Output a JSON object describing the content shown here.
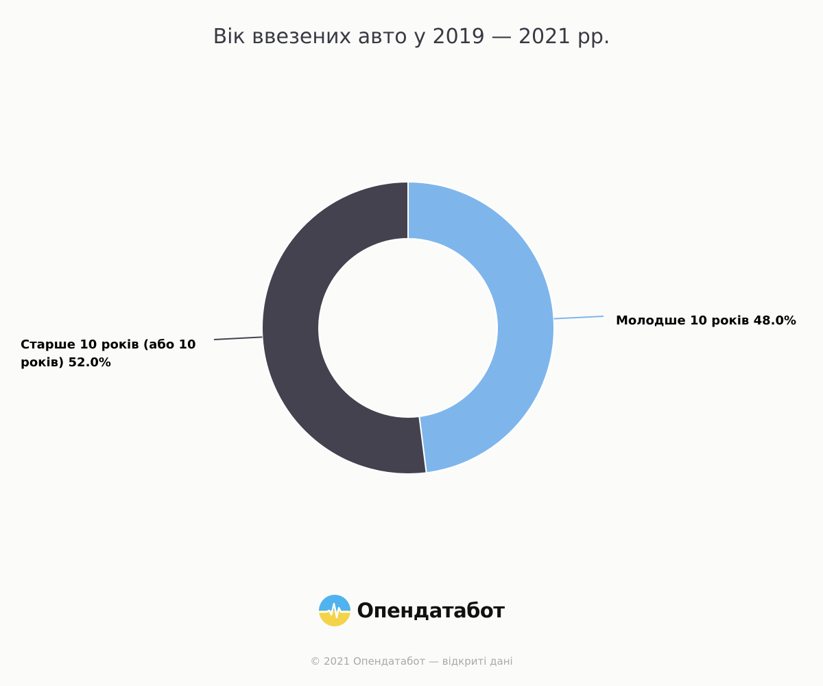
{
  "chart_data": {
    "type": "pie",
    "variant": "donut",
    "title": "Вік ввезених авто у 2019 — 2021 рр.",
    "categories": [
      "Молодше 10 років",
      "Старше 10 років (або 10 років)"
    ],
    "values": [
      48.0,
      52.0
    ],
    "unit": "%",
    "labels": {
      "young": [
        "Молодше 10 років 48.0%"
      ],
      "old": [
        "Старше 10 років (або 10",
        "років) 52.0%"
      ]
    },
    "colors": [
      "#7eb6ec",
      "#44424e"
    ],
    "legend": "none"
  },
  "branding": {
    "logo_text": "Опендатабот",
    "copyright": "© 2021 Опендатабот — відкриті дані"
  }
}
